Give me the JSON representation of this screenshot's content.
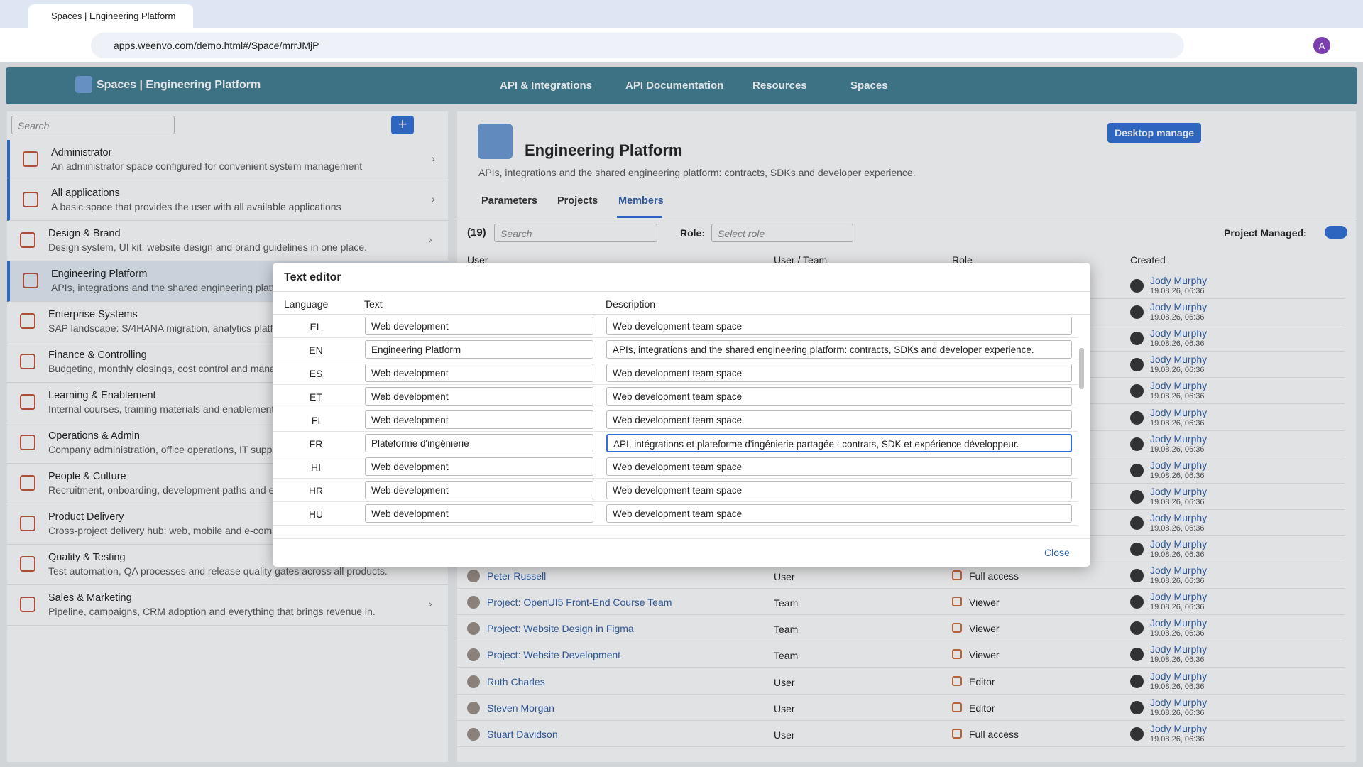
{
  "browser": {
    "tab_title": "Spaces | Engineering Platform",
    "url": "apps.weenvo.com/demo.html#/Space/mrrJMjP",
    "profile": "A"
  },
  "app_header": {
    "title": "Spaces | Engineering Platform",
    "nav": [
      "API & Integrations",
      "API Documentation",
      "Resources",
      "Spaces"
    ]
  },
  "sidebar": {
    "search_placeholder": "Search",
    "items": [
      {
        "title": "Administrator",
        "description": "An administrator space configured for convenient system management"
      },
      {
        "title": "All applications",
        "description": "A basic space that provides the user with all available applications"
      },
      {
        "title": "Design & Brand",
        "description": "Design system, UI kit, website design and brand guidelines in one place."
      },
      {
        "title": "Engineering Platform",
        "description": "APIs, integrations and the shared engineering platform: contracts, SDKs and developer experience."
      },
      {
        "title": "Enterprise Systems",
        "description": "SAP landscape: S/4HANA migration, analytics platfo"
      },
      {
        "title": "Finance & Controlling",
        "description": "Budgeting, monthly closings, cost control and mana"
      },
      {
        "title": "Learning & Enablement",
        "description": "Internal courses, training materials and enablement"
      },
      {
        "title": "Operations & Admin",
        "description": "Company administration, office operations, IT suppo"
      },
      {
        "title": "People & Culture",
        "description": "Recruitment, onboarding, development paths and e"
      },
      {
        "title": "Product Delivery",
        "description": "Cross-project delivery hub: web, mobile and e-com"
      },
      {
        "title": "Quality & Testing",
        "description": "Test automation, QA processes and release quality gates across all products."
      },
      {
        "title": "Sales & Marketing",
        "description": "Pipeline, campaigns, CRM adoption and everything that brings revenue in."
      }
    ]
  },
  "detail": {
    "title": "Engineering Platform",
    "description": "APIs, integrations and the shared engineering platform: contracts, SDKs and developer experience.",
    "button": "Desktop manage",
    "tabs": [
      "Parameters",
      "Projects",
      "Members"
    ],
    "members_count": "(19)",
    "search_placeholder": "Search",
    "role_label": "Role:",
    "role_placeholder": "Select role",
    "project_managed_label": "Project Managed:",
    "columns": [
      "User",
      "User / Team",
      "Role",
      "Created"
    ],
    "rows": [
      {
        "created_by": "Jody Murphy",
        "created_at": "19.08.26, 06:36"
      },
      {
        "created_by": "Jody Murphy",
        "created_at": "19.08.26, 06:36"
      },
      {
        "created_by": "Jody Murphy",
        "created_at": "19.08.26, 06:36"
      },
      {
        "created_by": "Jody Murphy",
        "created_at": "19.08.26, 06:36"
      },
      {
        "created_by": "Jody Murphy",
        "created_at": "19.08.26, 06:36"
      },
      {
        "created_by": "Jody Murphy",
        "created_at": "19.08.26, 06:36"
      },
      {
        "created_by": "Jody Murphy",
        "created_at": "19.08.26, 06:36"
      },
      {
        "created_by": "Jody Murphy",
        "created_at": "19.08.26, 06:36"
      },
      {
        "created_by": "Jody Murphy",
        "created_at": "19.08.26, 06:36"
      },
      {
        "created_by": "Jody Murphy",
        "created_at": "19.08.26, 06:36"
      },
      {
        "created_by": "Jody Murphy",
        "created_at": "19.08.26, 06:36"
      },
      {
        "user": "Peter Russell",
        "type": "User",
        "role": "Full access",
        "created_by": "Jody Murphy",
        "created_at": "19.08.26, 06:36"
      },
      {
        "user": "Project: OpenUI5 Front-End Course Team",
        "type": "Team",
        "role": "Viewer",
        "created_by": "Jody Murphy",
        "created_at": "19.08.26, 06:36"
      },
      {
        "user": "Project: Website Design in Figma",
        "type": "Team",
        "role": "Viewer",
        "created_by": "Jody Murphy",
        "created_at": "19.08.26, 06:36"
      },
      {
        "user": "Project: Website Development",
        "type": "Team",
        "role": "Viewer",
        "created_by": "Jody Murphy",
        "created_at": "19.08.26, 06:36"
      },
      {
        "user": "Ruth Charles",
        "type": "User",
        "role": "Editor",
        "created_by": "Jody Murphy",
        "created_at": "19.08.26, 06:36"
      },
      {
        "user": "Steven Morgan",
        "type": "User",
        "role": "Editor",
        "created_by": "Jody Murphy",
        "created_at": "19.08.26, 06:36"
      },
      {
        "user": "Stuart Davidson",
        "type": "User",
        "role": "Full access",
        "created_by": "Jody Murphy",
        "created_at": "19.08.26, 06:36"
      }
    ]
  },
  "dialog": {
    "title": "Text editor",
    "columns": [
      "Language",
      "Text",
      "Description"
    ],
    "rows": [
      {
        "language": "EL",
        "text": "Web development",
        "description": "Web development team space"
      },
      {
        "language": "EN",
        "text": "Engineering Platform",
        "description": "APIs, integrations and the shared engineering platform: contracts, SDKs and developer experience."
      },
      {
        "language": "ES",
        "text": "Web development",
        "description": "Web development team space"
      },
      {
        "language": "ET",
        "text": "Web development",
        "description": "Web development team space"
      },
      {
        "language": "FI",
        "text": "Web development",
        "description": "Web development team space"
      },
      {
        "language": "FR",
        "text": "Plateforme d'ingénierie",
        "description": "API, intégrations et plateforme d'ingénierie partagée : contrats, SDK et expérience développeur."
      },
      {
        "language": "HI",
        "text": "Web development",
        "description": "Web development team space"
      },
      {
        "language": "HR",
        "text": "Web development",
        "description": "Web development team space"
      },
      {
        "language": "HU",
        "text": "Web development",
        "description": "Web development team space"
      }
    ],
    "close": "Close"
  }
}
